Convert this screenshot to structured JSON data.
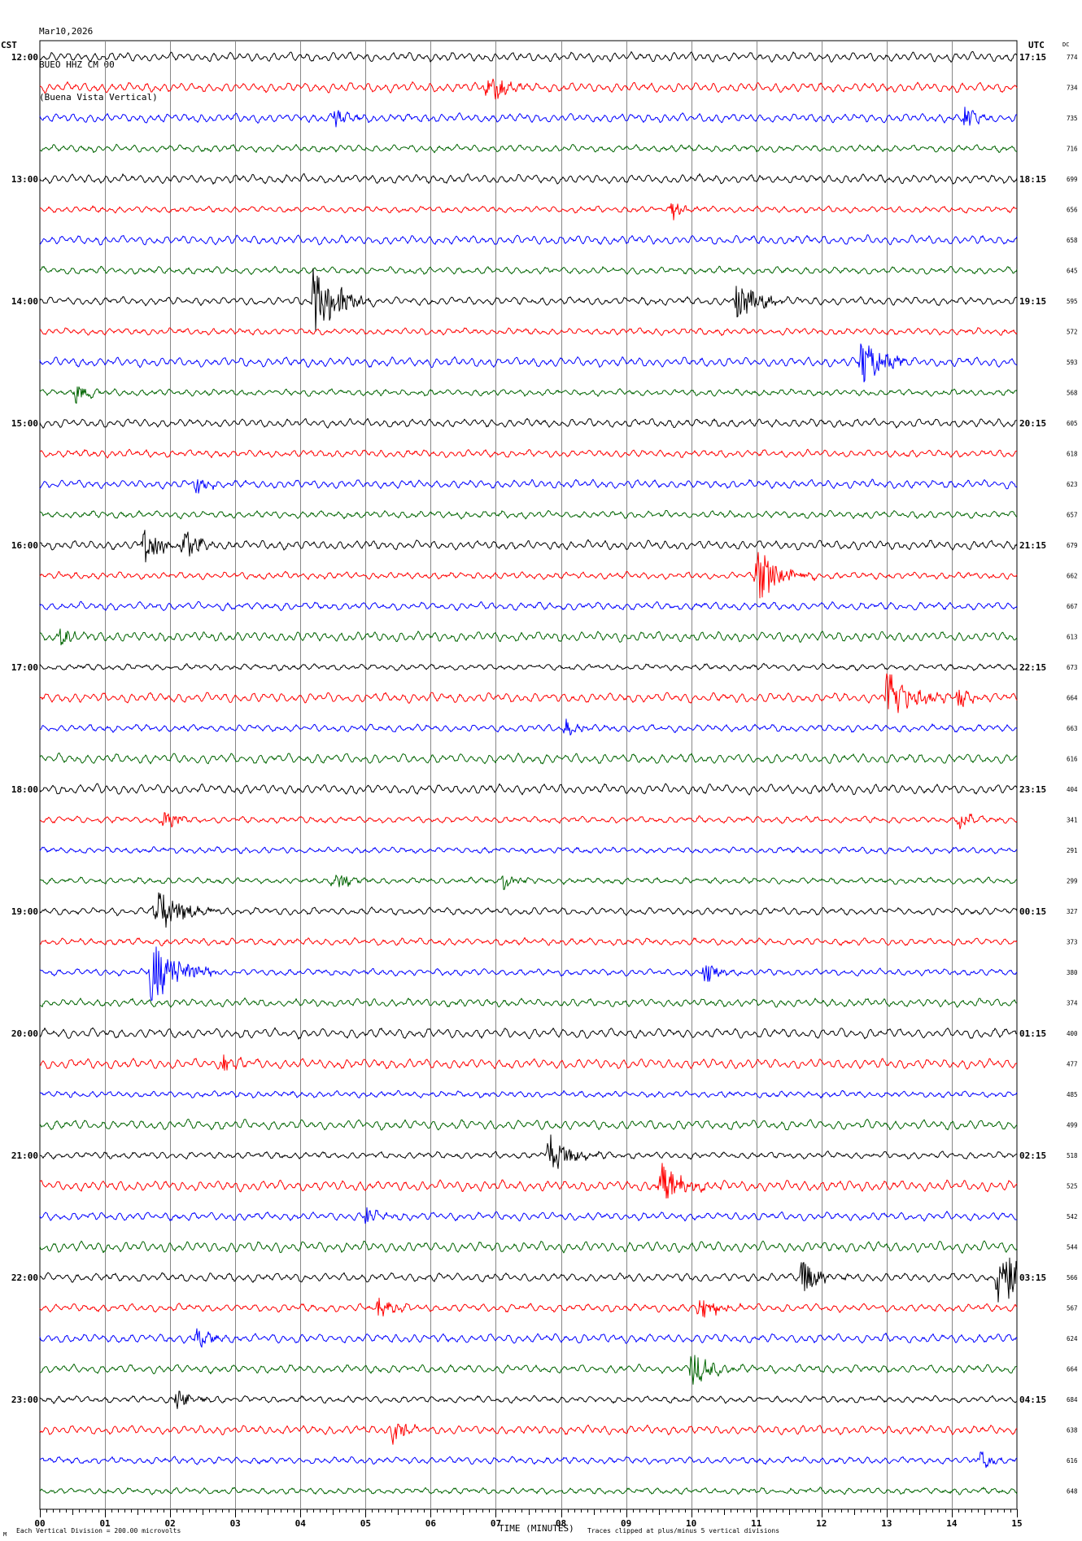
{
  "header": {
    "date": "Mar10,2026",
    "station": "BUEO HHZ CM 00",
    "site": "(Buena Vista Vertical)"
  },
  "chart_data": {
    "type": "line",
    "title": "Mar10,2026 BUEO HHZ CM 00 (Buena Vista Vertical)",
    "left_axis_title": "CST",
    "right_axis_title": "UTC",
    "dc_title": "DC",
    "xlabel": "TIME (MINUTES)",
    "xlim": [
      0,
      15
    ],
    "x_ticks": [
      "00",
      "01",
      "02",
      "03",
      "04",
      "05",
      "06",
      "07",
      "08",
      "09",
      "10",
      "11",
      "12",
      "13",
      "14",
      "15"
    ],
    "grid": true,
    "trace_colors": [
      "#000000",
      "#ff0000",
      "#0000ff",
      "#006400"
    ],
    "left_labels": [
      "12:00",
      "13:00",
      "14:00",
      "15:00",
      "16:00",
      "17:00",
      "18:00",
      "19:00",
      "20:00",
      "21:00",
      "22:00",
      "23:00"
    ],
    "right_labels": [
      "17:15",
      "18:15",
      "19:15",
      "20:15",
      "21:15",
      "22:15",
      "23:15",
      "00:15",
      "01:15",
      "02:15",
      "03:15",
      "04:15"
    ],
    "dc_values": [
      "774",
      "734",
      "735",
      "716",
      "699",
      "656",
      "658",
      "645",
      "595",
      "572",
      "593",
      "568",
      "605",
      "618",
      "623",
      "657",
      "679",
      "662",
      "667",
      "613",
      "673",
      "664",
      "663",
      "616",
      "404",
      "341",
      "291",
      "299",
      "327",
      "373",
      "380",
      "374",
      "400",
      "477",
      "485",
      "499",
      "518",
      "525",
      "542",
      "544",
      "566",
      "567",
      "624",
      "664",
      "684",
      "638",
      "616",
      "648"
    ],
    "events": [
      {
        "trace": 1,
        "minute": 6.85,
        "amplitude": 0.5
      },
      {
        "trace": 2,
        "minute": 4.5,
        "amplitude": 0.3
      },
      {
        "trace": 2,
        "minute": 14.2,
        "amplitude": 0.3
      },
      {
        "trace": 5,
        "minute": 9.7,
        "amplitude": 0.25
      },
      {
        "trace": 8,
        "minute": 4.2,
        "amplitude": 1.0
      },
      {
        "trace": 8,
        "minute": 10.7,
        "amplitude": 0.6
      },
      {
        "trace": 10,
        "minute": 12.6,
        "amplitude": 0.7
      },
      {
        "trace": 11,
        "minute": 0.55,
        "amplitude": 0.3
      },
      {
        "trace": 14,
        "minute": 2.4,
        "amplitude": 0.3
      },
      {
        "trace": 16,
        "minute": 1.6,
        "amplitude": 0.5
      },
      {
        "trace": 16,
        "minute": 2.2,
        "amplitude": 0.45
      },
      {
        "trace": 17,
        "minute": 11.0,
        "amplitude": 0.8
      },
      {
        "trace": 19,
        "minute": 0.3,
        "amplitude": 0.3
      },
      {
        "trace": 21,
        "minute": 13.0,
        "amplitude": 0.8
      },
      {
        "trace": 21,
        "minute": 14.1,
        "amplitude": 0.3
      },
      {
        "trace": 22,
        "minute": 8.05,
        "amplitude": 0.3
      },
      {
        "trace": 25,
        "minute": 1.9,
        "amplitude": 0.3
      },
      {
        "trace": 25,
        "minute": 14.1,
        "amplitude": 0.3
      },
      {
        "trace": 27,
        "minute": 4.5,
        "amplitude": 0.3
      },
      {
        "trace": 27,
        "minute": 7.1,
        "amplitude": 0.25
      },
      {
        "trace": 28,
        "minute": 1.75,
        "amplitude": 0.8
      },
      {
        "trace": 30,
        "minute": 1.7,
        "amplitude": 1.0
      },
      {
        "trace": 30,
        "minute": 10.2,
        "amplitude": 0.3
      },
      {
        "trace": 33,
        "minute": 2.8,
        "amplitude": 0.3
      },
      {
        "trace": 36,
        "minute": 7.8,
        "amplitude": 0.6
      },
      {
        "trace": 37,
        "minute": 9.5,
        "amplitude": 0.7
      },
      {
        "trace": 38,
        "minute": 5.0,
        "amplitude": 0.25
      },
      {
        "trace": 40,
        "minute": 11.7,
        "amplitude": 0.5
      },
      {
        "trace": 40,
        "minute": 14.7,
        "amplitude": 1.0
      },
      {
        "trace": 41,
        "minute": 5.2,
        "amplitude": 0.35
      },
      {
        "trace": 41,
        "minute": 10.1,
        "amplitude": 0.4
      },
      {
        "trace": 42,
        "minute": 2.4,
        "amplitude": 0.3
      },
      {
        "trace": 43,
        "minute": 10.0,
        "amplitude": 0.55
      },
      {
        "trace": 44,
        "minute": 2.1,
        "amplitude": 0.3
      },
      {
        "trace": 45,
        "minute": 5.4,
        "amplitude": 0.35
      },
      {
        "trace": 46,
        "minute": 14.4,
        "amplitude": 0.3
      }
    ]
  },
  "footer": {
    "corner": "M",
    "scale_note": "Each Vertical Division =  200.00 microvolts",
    "xlabel": "TIME (MINUTES)",
    "clip_note": "Traces clipped at plus/minus 5 vertical divisions"
  }
}
